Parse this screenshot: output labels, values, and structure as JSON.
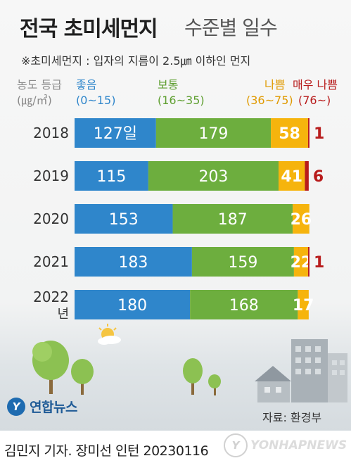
{
  "header": {
    "title_main": "전국 초미세먼지",
    "title_sub": "수준별 일수",
    "note": "※초미세먼지 : 입자의 지름이 2.5㎛ 이하인 먼지"
  },
  "legend": {
    "axis_label_line1": "농도 등급",
    "axis_label_line2": "(㎍/㎥)",
    "categories": [
      {
        "label": "좋음",
        "range": "(0~15)",
        "color": "#2f86cb"
      },
      {
        "label": "보통",
        "range": "(16~35)",
        "color": "#6dae3e"
      },
      {
        "label": "나쁨",
        "range": "(36~75)",
        "color": "#f6b40d"
      },
      {
        "label": "매우 나쁨",
        "range": "(76~)",
        "color": "#b81c1c"
      }
    ]
  },
  "chart_data": {
    "type": "bar",
    "orientation": "horizontal",
    "stacked": true,
    "categories": [
      "2018",
      "2019",
      "2020",
      "2021",
      "2022"
    ],
    "category_suffix_last": "년",
    "series": [
      {
        "name": "좋음",
        "values": [
          127,
          115,
          153,
          183,
          180
        ],
        "color": "#2f86cb"
      },
      {
        "name": "보통",
        "values": [
          179,
          203,
          187,
          159,
          168
        ],
        "color": "#6dae3e"
      },
      {
        "name": "나쁨",
        "values": [
          58,
          41,
          26,
          22,
          17
        ],
        "color": "#f6b40d"
      },
      {
        "name": "매우 나쁨",
        "values": [
          1,
          6,
          0,
          1,
          0
        ],
        "color": "#b81c1c"
      }
    ],
    "value_labels": [
      [
        "127일",
        "179",
        "58",
        "1"
      ],
      [
        "115",
        "203",
        "41",
        "6"
      ],
      [
        "153",
        "187",
        "26",
        ""
      ],
      [
        "183",
        "159",
        "22",
        "1"
      ],
      [
        "180",
        "168",
        "17",
        ""
      ]
    ]
  },
  "footer": {
    "logo": "연합뉴스",
    "logo_mark": "Y",
    "source": "자료: 환경부",
    "credit": "김민지 기자. 장미선 인턴  20230116",
    "watermark": "YONHAPNEWS"
  }
}
